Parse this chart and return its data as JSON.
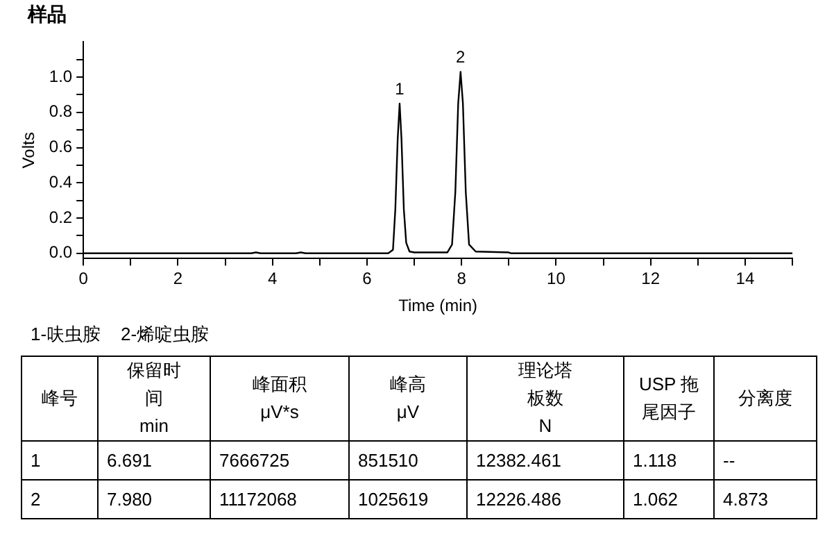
{
  "chart_data": {
    "type": "line",
    "title": "样品",
    "xlabel": "Time (min)",
    "ylabel": "Volts",
    "x": [
      0,
      3.55,
      3.65,
      3.75,
      4.5,
      4.6,
      4.7,
      6.45,
      6.55,
      6.6,
      6.65,
      6.691,
      6.73,
      6.78,
      6.83,
      6.9,
      7.0,
      7.7,
      7.8,
      7.87,
      7.93,
      7.98,
      8.03,
      8.09,
      8.16,
      8.3,
      9.0,
      9.05,
      15
    ],
    "series": [
      {
        "color": "#000000",
        "values": [
          0,
          0,
          0.005,
          0,
          0,
          0.005,
          0,
          0,
          0.02,
          0.25,
          0.65,
          0.85,
          0.65,
          0.25,
          0.06,
          0.01,
          0.005,
          0.005,
          0.05,
          0.35,
          0.85,
          1.03,
          0.85,
          0.35,
          0.05,
          0.01,
          0.005,
          0,
          0
        ]
      }
    ],
    "xlim": [
      0,
      15
    ],
    "xticks": [
      0,
      {
        "value": 1,
        "label": null
      },
      2,
      {
        "value": 3,
        "label": null
      },
      4,
      {
        "value": 5,
        "label": null
      },
      6,
      {
        "value": 7,
        "label": null
      },
      8,
      {
        "value": 9,
        "label": null
      },
      10,
      {
        "value": 11,
        "label": null
      },
      12,
      {
        "value": 13,
        "label": null
      },
      14,
      {
        "value": 15,
        "label": null
      }
    ],
    "ylim": [
      -0.03,
      1.2
    ],
    "yticks": [
      {
        "value": 0,
        "label": "0.0"
      },
      {
        "value": 0.1,
        "label": null
      },
      {
        "value": 0.2,
        "label": "0.2"
      },
      {
        "value": 0.3,
        "label": null
      },
      {
        "value": 0.4,
        "label": "0.4"
      },
      {
        "value": 0.5,
        "label": null
      },
      {
        "value": 0.6,
        "label": "0.6"
      },
      {
        "value": 0.7,
        "label": null
      },
      {
        "value": 0.8,
        "label": "0.8"
      },
      {
        "value": 0.9,
        "label": null
      },
      {
        "value": 1,
        "label": "1.0"
      },
      {
        "value": 1.1,
        "label": null
      }
    ],
    "grid": false,
    "legend": false,
    "marker": "none",
    "line_style": "solid",
    "annotations": [
      {
        "text": "1",
        "x": 6.691,
        "y": 0.85
      },
      {
        "text": "2",
        "x": 7.98,
        "y": 1.03
      },
      "1-呋虫胺    2-烯啶虫胺",
      "峰号",
      "保留时间\nmin",
      "峰面积\nμV*s",
      "峰高\nμV",
      "理论塔板数\nN",
      "USP 拖尾因子",
      "分离度",
      "1",
      "6.691",
      "7666725",
      "851510",
      "12382.461",
      "1.118",
      "--",
      "2",
      "7.980",
      "11172068",
      "1025619",
      "12226.486",
      "1.062",
      "4.873"
    ]
  }
}
